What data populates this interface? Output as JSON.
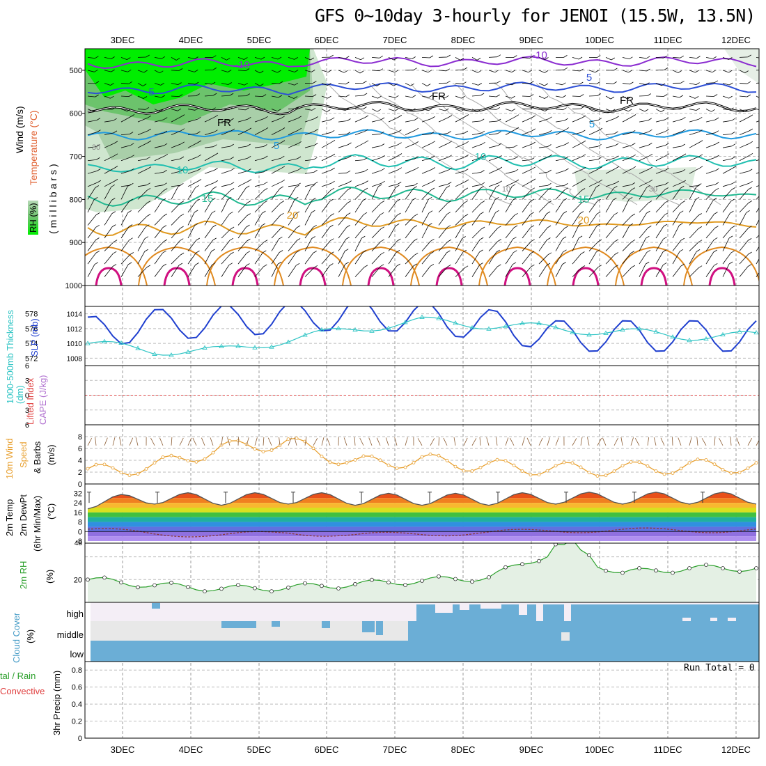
{
  "title": "GFS 0~10day 3-hourly for JENOI (15.5W, 13.5N)",
  "dates": [
    "3DEC",
    "4DEC",
    "5DEC",
    "6DEC",
    "7DEC",
    "8DEC",
    "9DEC",
    "10DEC",
    "11DEC",
    "12DEC"
  ],
  "colors": {
    "rh_green": "#00ee00",
    "rh_mid": "#6cc36c",
    "rh_light": "#b7d9b7",
    "cloud": "#6baed6",
    "cloud_bg": "#e8e8e8",
    "slp": "#1f3fcf",
    "thick": "#2ec4c4",
    "wind": "#e8a030",
    "rh2m": "#2ca02c",
    "cape": "#b070d0",
    "li": "#e04040"
  },
  "panel1": {
    "label_wind": "Wind (m/s)",
    "label_temp": "Temperature (°C)",
    "label_mb": "(millibars)",
    "label_rh": "RH (%)",
    "y_ticks": [
      "500",
      "600",
      "700",
      "800",
      "900",
      "1000"
    ],
    "contours": [
      {
        "label": "-10",
        "color": "#8a2bd0",
        "level": 480
      },
      {
        "label": "-5",
        "color": "#2d4fd6",
        "level": 540
      },
      {
        "label": "FR",
        "color": "#000000",
        "level": 585
      },
      {
        "label": "5",
        "color": "#1f9ae0",
        "level": 650
      },
      {
        "label": "10",
        "color": "#1fbfb0",
        "level": 715
      },
      {
        "label": "15",
        "color": "#20b890",
        "level": 790
      },
      {
        "label": "20",
        "color": "#e09a20",
        "level": 858
      }
    ],
    "contour_labels": [
      {
        "t": "-10",
        "c": "#8a2bd0"
      },
      {
        "t": "-10",
        "c": "#8a2bd0"
      },
      {
        "t": "-5",
        "c": "#2d4fd6"
      },
      {
        "t": "5",
        "c": "#2d4fd6"
      },
      {
        "t": "FR",
        "c": "#000"
      },
      {
        "t": "FR",
        "c": "#000"
      },
      {
        "t": "FR",
        "c": "#000"
      },
      {
        "t": "5",
        "c": "#1f9ae0"
      },
      {
        "t": "5",
        "c": "#1f9ae0"
      },
      {
        "t": "10",
        "c": "#1fbfb0"
      },
      {
        "t": "10",
        "c": "#1fbfb0"
      },
      {
        "t": "15",
        "c": "#20b890"
      },
      {
        "t": "15",
        "c": "#20b890"
      },
      {
        "t": "20",
        "c": "#e09a20"
      },
      {
        "t": "20",
        "c": "#e09a20"
      },
      {
        "t": "30",
        "c": "#888"
      },
      {
        "t": "10",
        "c": "#888"
      },
      {
        "t": "30",
        "c": "#888"
      }
    ]
  },
  "panel2": {
    "label_thick": "1000-500mb Thickness (dm)",
    "label_slp": "SLP (mb)",
    "y_left": [
      "578",
      "576",
      "574",
      "572"
    ],
    "y_right": [
      "1014",
      "1012",
      "1010",
      "1008"
    ]
  },
  "panel3": {
    "label_li": "Lifted Index",
    "label_cape": "CAPE (J/kg)",
    "y_ticks": [
      "6",
      "3",
      "0",
      "-3",
      "-6"
    ]
  },
  "panel4": {
    "label1": "10m Wind",
    "label2": "Speed",
    "label3": "& Barbs",
    "label4": "(m/s)",
    "y_ticks": [
      "8",
      "6",
      "4",
      "2",
      "0"
    ]
  },
  "panel5": {
    "label1": "2m Temp",
    "label2": "2m DewPt",
    "label3": "(6hr Min/Max)",
    "label4": "(°C)",
    "y_ticks": [
      "32",
      "24",
      "16",
      "8",
      "0",
      "-8"
    ]
  },
  "panel6": {
    "label1": "2m RH",
    "label2": "(%)",
    "y_ticks": [
      "48",
      "20"
    ]
  },
  "panel7": {
    "label1": "Cloud Cover",
    "label2": "(%)",
    "levels": [
      "high",
      "middle",
      "low"
    ]
  },
  "panel8": {
    "label1": "tal / Rain",
    "label2": "Convective",
    "label3": "3hr Precip (mm)",
    "run_total": "Run Total = 0",
    "y_ticks": [
      "0.8",
      "0.6",
      "0.4",
      "0.2",
      "0"
    ]
  },
  "chart_data": [
    {
      "type": "line",
      "title": "1000-500mb Thickness (dm) / SLP (mb)",
      "x": [
        "3DEC",
        "4DEC",
        "5DEC",
        "6DEC",
        "7DEC",
        "8DEC",
        "9DEC",
        "10DEC",
        "11DEC",
        "12DEC"
      ],
      "series": [
        {
          "name": "SLP (mb)",
          "values": [
            1011.5,
            1012.5,
            1013,
            1013.5,
            1014,
            1013.5,
            1012.5,
            1011,
            1011,
            1011
          ]
        },
        {
          "name": "1000-500mb Thickness (dm)",
          "values": [
            574,
            573,
            573,
            574.5,
            576,
            577,
            576.5,
            576,
            575.5,
            575
          ]
        }
      ]
    },
    {
      "type": "line",
      "title": "10m Wind Speed (m/s)",
      "x": [
        "3DEC",
        "4DEC",
        "5DEC",
        "6DEC",
        "7DEC",
        "8DEC",
        "9DEC",
        "10DEC",
        "11DEC",
        "12DEC"
      ],
      "series": [
        {
          "name": "Speed",
          "values": [
            2,
            3,
            6,
            7,
            3.5,
            4,
            3,
            2.5,
            2.5,
            3
          ]
        }
      ]
    },
    {
      "type": "area",
      "title": "2m Temp (°C)",
      "x": [
        "3DEC",
        "4DEC",
        "5DEC",
        "6DEC",
        "7DEC",
        "8DEC",
        "9DEC",
        "10DEC",
        "11DEC",
        "12DEC"
      ],
      "series": [
        {
          "name": "2m Temp max",
          "values": [
            30,
            34,
            33,
            34,
            33,
            33,
            33,
            34,
            34,
            34
          ]
        },
        {
          "name": "2m DewPt",
          "values": [
            2,
            -2,
            -3,
            -1,
            -3,
            -2,
            -1,
            1,
            1,
            1
          ]
        }
      ]
    },
    {
      "type": "line",
      "title": "2m RH (%)",
      "x": [
        "3DEC",
        "4DEC",
        "5DEC",
        "6DEC",
        "7DEC",
        "8DEC",
        "9DEC",
        "10DEC",
        "11DEC",
        "12DEC"
      ],
      "series": [
        {
          "name": "2m RH",
          "values": [
            20,
            15,
            12,
            13,
            16,
            19,
            22,
            45,
            26,
            30
          ]
        }
      ]
    },
    {
      "type": "line",
      "title": "3hr Precip (mm)",
      "ylim": [
        0,
        0.9
      ],
      "series": [
        {
          "name": "Total",
          "values": [
            0,
            0,
            0,
            0,
            0,
            0,
            0,
            0,
            0,
            0
          ]
        }
      ]
    }
  ]
}
